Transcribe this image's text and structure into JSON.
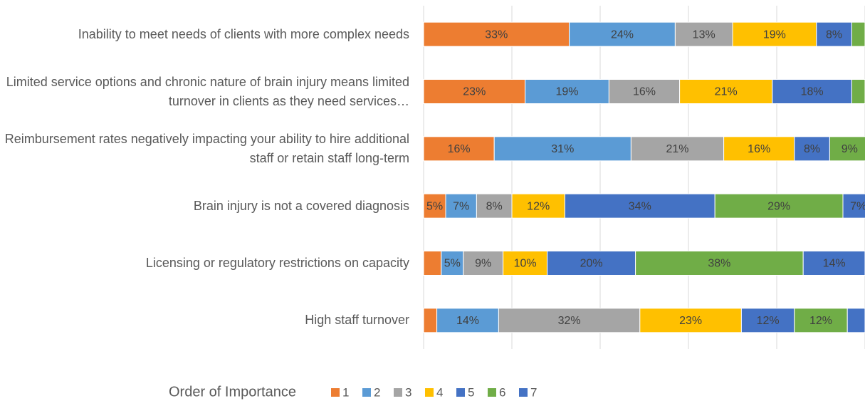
{
  "chart_data": {
    "type": "stacked_barh",
    "categories": [
      "Inability to meet needs of clients with more complex needs",
      "Limited service options and chronic nature of brain injury means limited turnover in clients as they need services…",
      "Reimbursement rates negatively impacting your ability to hire additional staff or retain staff long-term",
      "Brain injury is not a covered diagnosis",
      "Licensing or regulatory restrictions on capacity",
      "High staff turnover"
    ],
    "series": [
      {
        "name": "1",
        "color": "#ed7d31",
        "values": [
          33,
          23,
          16,
          5,
          4,
          3
        ],
        "value_labels": [
          "33%",
          "23%",
          "16%",
          "5%",
          null,
          null
        ]
      },
      {
        "name": "2",
        "color": "#5b9bd5",
        "values": [
          24,
          19,
          31,
          7,
          5,
          14
        ],
        "value_labels": [
          "24%",
          "19%",
          "31%",
          "7%",
          "5%",
          "14%"
        ]
      },
      {
        "name": "3",
        "color": "#a5a5a5",
        "values": [
          13,
          16,
          21,
          8,
          9,
          32
        ],
        "value_labels": [
          "13%",
          "16%",
          "21%",
          "8%",
          "9%",
          "32%"
        ]
      },
      {
        "name": "4",
        "color": "#ffc000",
        "values": [
          19,
          21,
          16,
          12,
          10,
          23
        ],
        "value_labels": [
          "19%",
          "21%",
          "16%",
          "12%",
          "10%",
          "23%"
        ]
      },
      {
        "name": "5",
        "color": "#4472c4",
        "values": [
          8,
          18,
          8,
          34,
          20,
          12
        ],
        "value_labels": [
          "8%",
          "18%",
          "8%",
          "34%",
          "20%",
          "12%"
        ]
      },
      {
        "name": "6",
        "color": "#70ad47",
        "values": [
          3,
          3,
          9,
          29,
          38,
          12
        ],
        "value_labels": [
          null,
          null,
          "9%",
          "29%",
          "38%",
          "12%"
        ]
      },
      {
        "name": "7",
        "color": "#4472c4",
        "values": [
          0,
          0,
          0,
          7,
          14,
          4
        ],
        "value_labels": [
          null,
          null,
          null,
          "7%",
          "14%",
          null
        ]
      }
    ],
    "legend_title": "Order of Importance",
    "xlim": [
      0,
      100
    ],
    "xticks": [
      0,
      20,
      40,
      60,
      80,
      100
    ],
    "grid": true,
    "legend": "bottom"
  }
}
